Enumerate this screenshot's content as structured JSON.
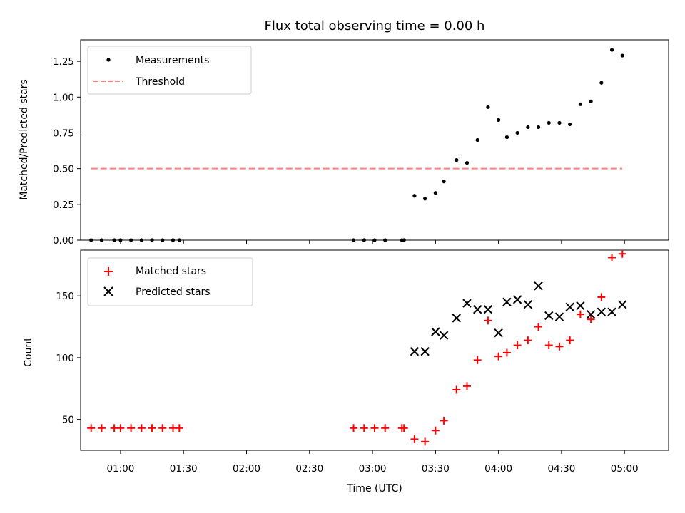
{
  "chart_data": [
    {
      "type": "scatter",
      "title": "Flux total observing time = 0.00 h",
      "xlabel": "",
      "ylabel": "Matched/Predicted stars",
      "xlim": [
        "00:41",
        "05:21"
      ],
      "ylim": [
        0.0,
        1.4
      ],
      "yticks": [
        "0.00",
        "0.25",
        "0.50",
        "0.75",
        "1.00",
        "1.25"
      ],
      "legend_position": "top-left",
      "grid": false,
      "series": [
        {
          "name": "Measurements",
          "kind": "scatter",
          "color": "#000000",
          "points": [
            [
              "00:46",
              0.0
            ],
            [
              "00:51",
              0.0
            ],
            [
              "00:57",
              0.0
            ],
            [
              "01:00",
              0.0
            ],
            [
              "01:05",
              0.0
            ],
            [
              "01:10",
              0.0
            ],
            [
              "01:15",
              0.0
            ],
            [
              "01:20",
              0.0
            ],
            [
              "01:25",
              0.0
            ],
            [
              "01:28",
              0.0
            ],
            [
              "02:51",
              0.0
            ],
            [
              "02:56",
              0.0
            ],
            [
              "03:01",
              0.0
            ],
            [
              "03:06",
              0.0
            ],
            [
              "03:14",
              0.0
            ],
            [
              "03:15",
              0.0
            ],
            [
              "03:20",
              0.31
            ],
            [
              "03:25",
              0.29
            ],
            [
              "03:30",
              0.33
            ],
            [
              "03:34",
              0.41
            ],
            [
              "03:40",
              0.56
            ],
            [
              "03:45",
              0.54
            ],
            [
              "03:50",
              0.7
            ],
            [
              "03:55",
              0.93
            ],
            [
              "04:00",
              0.84
            ],
            [
              "04:04",
              0.72
            ],
            [
              "04:09",
              0.75
            ],
            [
              "04:14",
              0.79
            ],
            [
              "04:19",
              0.79
            ],
            [
              "04:24",
              0.82
            ],
            [
              "04:29",
              0.82
            ],
            [
              "04:34",
              0.81
            ],
            [
              "04:39",
              0.95
            ],
            [
              "04:44",
              0.97
            ],
            [
              "04:49",
              1.1
            ],
            [
              "04:54",
              1.33
            ],
            [
              "04:59",
              1.29
            ]
          ]
        },
        {
          "name": "Threshold",
          "kind": "line",
          "style": "dashed",
          "color": "#ff7f7f",
          "points": [
            [
              "00:46",
              0.5
            ],
            [
              "04:59",
              0.5
            ]
          ]
        }
      ]
    },
    {
      "type": "scatter",
      "title": "",
      "xlabel": "Time (UTC)",
      "ylabel": "Count",
      "xlim": [
        "00:41",
        "05:21"
      ],
      "ylim": [
        25,
        187
      ],
      "yticks": [
        "50",
        "100",
        "150"
      ],
      "xticks": [
        "01:00",
        "01:30",
        "02:00",
        "02:30",
        "03:00",
        "03:30",
        "04:00",
        "04:30",
        "05:00"
      ],
      "legend_position": "top-left",
      "grid": false,
      "series": [
        {
          "name": "Matched stars",
          "kind": "plus",
          "color": "#ff0000",
          "points": [
            [
              "00:46",
              43
            ],
            [
              "00:51",
              43
            ],
            [
              "00:57",
              43
            ],
            [
              "01:00",
              43
            ],
            [
              "01:05",
              43
            ],
            [
              "01:10",
              43
            ],
            [
              "01:15",
              43
            ],
            [
              "01:20",
              43
            ],
            [
              "01:25",
              43
            ],
            [
              "01:28",
              43
            ],
            [
              "02:51",
              43
            ],
            [
              "02:56",
              43
            ],
            [
              "03:01",
              43
            ],
            [
              "03:06",
              43
            ],
            [
              "03:14",
              43
            ],
            [
              "03:15",
              43
            ],
            [
              "03:20",
              34
            ],
            [
              "03:25",
              32
            ],
            [
              "03:30",
              41
            ],
            [
              "03:34",
              49
            ],
            [
              "03:40",
              74
            ],
            [
              "03:45",
              77
            ],
            [
              "03:50",
              98
            ],
            [
              "03:55",
              130
            ],
            [
              "04:00",
              101
            ],
            [
              "04:04",
              104
            ],
            [
              "04:09",
              110
            ],
            [
              "04:14",
              114
            ],
            [
              "04:19",
              125
            ],
            [
              "04:24",
              110
            ],
            [
              "04:29",
              109
            ],
            [
              "04:34",
              114
            ],
            [
              "04:39",
              135
            ],
            [
              "04:44",
              131
            ],
            [
              "04:49",
              149
            ],
            [
              "04:54",
              181
            ],
            [
              "04:59",
              184
            ]
          ]
        },
        {
          "name": "Predicted stars",
          "kind": "x",
          "color": "#000000",
          "points": [
            [
              "03:20",
              105
            ],
            [
              "03:25",
              105
            ],
            [
              "03:30",
              121
            ],
            [
              "03:34",
              118
            ],
            [
              "03:40",
              132
            ],
            [
              "03:45",
              144
            ],
            [
              "03:50",
              139
            ],
            [
              "03:55",
              139
            ],
            [
              "04:00",
              120
            ],
            [
              "04:04",
              145
            ],
            [
              "04:09",
              147
            ],
            [
              "04:14",
              143
            ],
            [
              "04:19",
              158
            ],
            [
              "04:24",
              134
            ],
            [
              "04:29",
              133
            ],
            [
              "04:34",
              141
            ],
            [
              "04:39",
              142
            ],
            [
              "04:44",
              135
            ],
            [
              "04:49",
              137
            ],
            [
              "04:54",
              137
            ],
            [
              "04:59",
              143
            ]
          ]
        }
      ]
    }
  ]
}
